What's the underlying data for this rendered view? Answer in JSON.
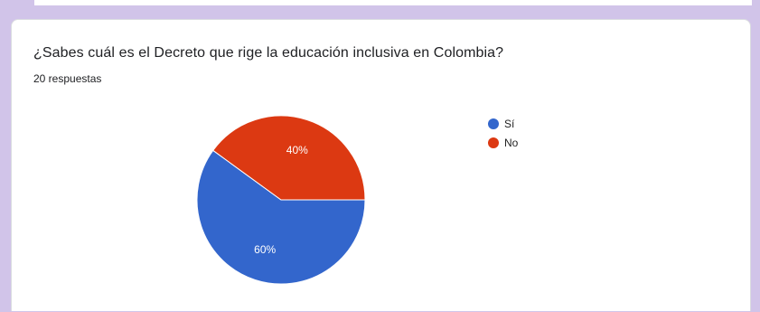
{
  "question": {
    "title": "¿Sabes cuál es el Decreto que rige la educación inclusiva en Colombia?",
    "responses": "20 respuestas"
  },
  "chart_data": {
    "type": "pie",
    "title": "",
    "slices": [
      {
        "label": "Sí",
        "value": 60,
        "display": "60%",
        "color": "#3366cc"
      },
      {
        "label": "No",
        "value": 40,
        "display": "40%",
        "color": "#dc3912"
      }
    ],
    "legend_position": "right"
  }
}
